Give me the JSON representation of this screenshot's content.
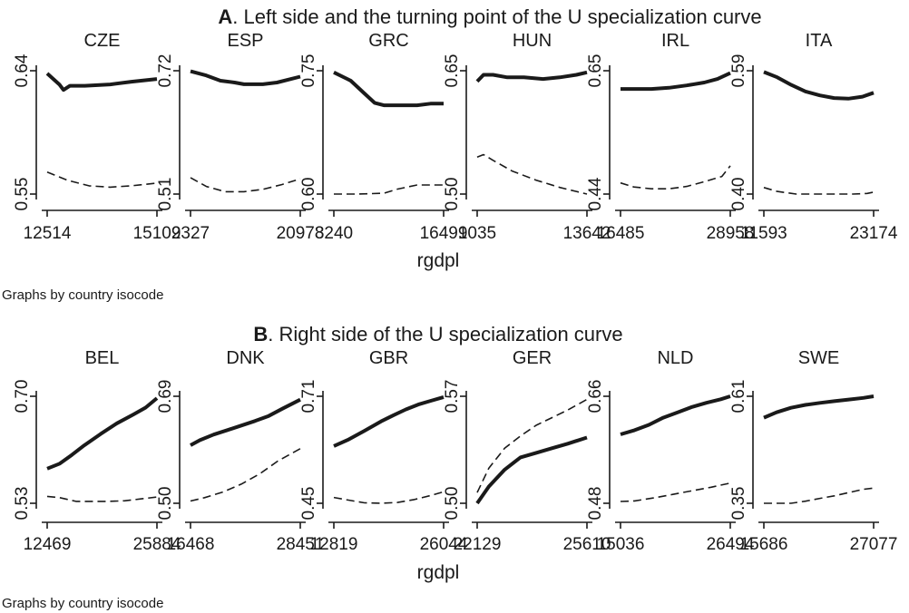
{
  "panels": [
    {
      "letter": "A",
      "title": ". Left side and the turning point of the U specialization curve",
      "xlabel": "rgdpl",
      "note": "Graphs by country isocode"
    },
    {
      "letter": "B",
      "title": ". Right side of the U specialization curve",
      "xlabel": "rgdpl",
      "note": "Graphs by country isocode"
    }
  ],
  "chart_data": [
    {
      "type": "line",
      "panel": "A",
      "subplots": [
        {
          "title": "CZE",
          "xlim": [
            12514,
            15102
          ],
          "ylim": [
            0.55,
            0.64
          ],
          "x_ticks": [
            "12514",
            "15102"
          ],
          "y_ticks": [
            "0.55",
            "0.64"
          ],
          "series": [
            {
              "style": "solid",
              "x": [
                12514,
                12800,
                12900,
                13050,
                13400,
                14000,
                14500,
                15102
              ],
              "y": [
                0.638,
                0.63,
                0.626,
                0.629,
                0.629,
                0.63,
                0.632,
                0.634
              ]
            },
            {
              "style": "dashed",
              "x": [
                12514,
                13000,
                13500,
                14000,
                14500,
                15102
              ],
              "y": [
                0.566,
                0.56,
                0.556,
                0.555,
                0.556,
                0.558
              ]
            }
          ]
        },
        {
          "title": "ESP",
          "xlim": [
            9327,
            20973
          ],
          "ylim": [
            0.51,
            0.72
          ],
          "x_ticks": [
            "9327",
            "20973"
          ],
          "y_ticks": [
            "0.51",
            "0.72"
          ],
          "series": [
            {
              "style": "solid",
              "x": [
                9327,
                11000,
                12500,
                14000,
                15000,
                17000,
                18500,
                20000,
                20973
              ],
              "y": [
                0.719,
                0.712,
                0.703,
                0.7,
                0.697,
                0.697,
                0.7,
                0.706,
                0.71
              ]
            },
            {
              "style": "dashed",
              "x": [
                9327,
                11000,
                13000,
                15000,
                17000,
                19000,
                20973
              ],
              "y": [
                0.538,
                0.523,
                0.514,
                0.514,
                0.518,
                0.526,
                0.536
              ]
            }
          ]
        },
        {
          "title": "GRC",
          "xlim": [
            8240,
            16491
          ],
          "ylim": [
            0.6,
            0.75
          ],
          "x_ticks": [
            "8240",
            "16491"
          ],
          "y_ticks": [
            "0.60",
            "0.75"
          ],
          "series": [
            {
              "style": "solid",
              "x": [
                8240,
                9500,
                10500,
                11300,
                12000,
                13000,
                14500,
                15500,
                16491
              ],
              "y": [
                0.748,
                0.738,
                0.723,
                0.711,
                0.708,
                0.708,
                0.708,
                0.71,
                0.71
              ]
            },
            {
              "style": "dashed",
              "x": [
                8240,
                10000,
                12000,
                13000,
                14500,
                16491
              ],
              "y": [
                0.6,
                0.6,
                0.601,
                0.606,
                0.611,
                0.611
              ]
            }
          ]
        },
        {
          "title": "HUN",
          "xlim": [
            9035,
            13642
          ],
          "ylim": [
            0.5,
            0.65
          ],
          "x_ticks": [
            "9035",
            "13642"
          ],
          "y_ticks": [
            "0.50",
            "0.65"
          ],
          "series": [
            {
              "style": "solid",
              "x": [
                9035,
                9300,
                9700,
                10300,
                11000,
                11800,
                12500,
                13200,
                13642
              ],
              "y": [
                0.637,
                0.645,
                0.645,
                0.642,
                0.642,
                0.64,
                0.642,
                0.645,
                0.648
              ]
            },
            {
              "style": "dashed",
              "x": [
                9035,
                9300,
                9700,
                10500,
                11500,
                12500,
                13642
              ],
              "y": [
                0.545,
                0.548,
                0.541,
                0.528,
                0.517,
                0.508,
                0.5
              ]
            }
          ]
        },
        {
          "title": "IRL",
          "xlim": [
            16485,
            28958
          ],
          "ylim": [
            0.44,
            0.65
          ],
          "x_ticks": [
            "16485",
            "28958"
          ],
          "y_ticks": [
            "0.44",
            "0.65"
          ],
          "series": [
            {
              "style": "solid",
              "x": [
                16485,
                18000,
                20000,
                22000,
                24000,
                26000,
                27500,
                28958
              ],
              "y": [
                0.619,
                0.619,
                0.619,
                0.621,
                0.625,
                0.63,
                0.636,
                0.646
              ]
            },
            {
              "style": "dashed",
              "x": [
                16485,
                18000,
                20000,
                22000,
                24000,
                26000,
                28000,
                28958
              ],
              "y": [
                0.459,
                0.452,
                0.449,
                0.449,
                0.453,
                0.461,
                0.47,
                0.488
              ]
            }
          ]
        },
        {
          "title": "ITA",
          "xlim": [
            11593,
            23174
          ],
          "ylim": [
            0.4,
            0.59
          ],
          "x_ticks": [
            "11593",
            "23174"
          ],
          "y_ticks": [
            "0.40",
            "0.59"
          ],
          "series": [
            {
              "style": "solid",
              "x": [
                11593,
                13000,
                14500,
                16000,
                17500,
                19000,
                20500,
                22000,
                23174
              ],
              "y": [
                0.588,
                0.58,
                0.568,
                0.558,
                0.552,
                0.548,
                0.547,
                0.55,
                0.556
              ]
            },
            {
              "style": "dashed",
              "x": [
                11593,
                13000,
                15000,
                17000,
                19000,
                21000,
                22500,
                23174
              ],
              "y": [
                0.41,
                0.404,
                0.4,
                0.4,
                0.4,
                0.4,
                0.401,
                0.403
              ]
            }
          ]
        }
      ]
    },
    {
      "type": "line",
      "panel": "B",
      "subplots": [
        {
          "title": "BEL",
          "xlim": [
            12469,
            25884
          ],
          "ylim": [
            0.53,
            0.7
          ],
          "x_ticks": [
            "12469",
            "25884"
          ],
          "y_ticks": [
            "0.53",
            "0.70"
          ],
          "series": [
            {
              "style": "solid",
              "x": [
                12469,
                14000,
                15500,
                17000,
                19000,
                21000,
                23000,
                24500,
                25884
              ],
              "y": [
                0.585,
                0.593,
                0.607,
                0.622,
                0.64,
                0.657,
                0.671,
                0.682,
                0.697
              ]
            },
            {
              "style": "dashed",
              "x": [
                12469,
                14000,
                16000,
                18000,
                20000,
                22000,
                24000,
                25884
              ],
              "y": [
                0.541,
                0.539,
                0.533,
                0.533,
                0.533,
                0.534,
                0.537,
                0.54
              ]
            }
          ]
        },
        {
          "title": "DNK",
          "xlim": [
            16468,
            28451
          ],
          "ylim": [
            0.5,
            0.69
          ],
          "x_ticks": [
            "16468",
            "28451"
          ],
          "y_ticks": [
            "0.50",
            "0.69"
          ],
          "series": [
            {
              "style": "solid",
              "x": [
                16468,
                17500,
                19000,
                20500,
                22000,
                23500,
                25000,
                26500,
                28451
              ],
              "y": [
                0.603,
                0.612,
                0.622,
                0.63,
                0.638,
                0.646,
                0.655,
                0.668,
                0.684
              ]
            },
            {
              "style": "dashed",
              "x": [
                16468,
                18000,
                20000,
                22000,
                24000,
                26000,
                28451
              ],
              "y": [
                0.504,
                0.51,
                0.52,
                0.534,
                0.552,
                0.575,
                0.597
              ]
            }
          ]
        },
        {
          "title": "GBR",
          "xlim": [
            12819,
            26044
          ],
          "ylim": [
            0.45,
            0.71
          ],
          "x_ticks": [
            "12819",
            "26044"
          ],
          "y_ticks": [
            "0.45",
            "0.71"
          ],
          "series": [
            {
              "style": "solid",
              "x": [
                12819,
                14500,
                16500,
                18500,
                20000,
                21500,
                23000,
                24500,
                26044
              ],
              "y": [
                0.589,
                0.604,
                0.626,
                0.649,
                0.664,
                0.678,
                0.69,
                0.699,
                0.708
              ]
            },
            {
              "style": "dashed",
              "x": [
                12819,
                14500,
                16500,
                18500,
                20500,
                22500,
                24500,
                26044
              ],
              "y": [
                0.464,
                0.458,
                0.451,
                0.45,
                0.452,
                0.459,
                0.469,
                0.478
              ]
            }
          ]
        },
        {
          "title": "GER",
          "xlim": [
            22129,
            25610
          ],
          "ylim": [
            0.5,
            0.57
          ],
          "x_ticks": [
            "22129",
            "25610"
          ],
          "y_ticks": [
            "0.50",
            "0.57"
          ],
          "series": [
            {
              "style": "solid",
              "x": [
                22129,
                22500,
                23000,
                23500,
                24000,
                24500,
                25000,
                25610
              ],
              "y": [
                0.5,
                0.511,
                0.522,
                0.53,
                0.533,
                0.536,
                0.539,
                0.543
              ]
            },
            {
              "style": "dashed",
              "x": [
                22129,
                22500,
                23000,
                23500,
                24000,
                24500,
                25000,
                25610
              ],
              "y": [
                0.507,
                0.523,
                0.536,
                0.544,
                0.551,
                0.556,
                0.561,
                0.568
              ]
            }
          ]
        },
        {
          "title": "NLD",
          "xlim": [
            15036,
            26494
          ],
          "ylim": [
            0.48,
            0.66
          ],
          "x_ticks": [
            "15036",
            "26494"
          ],
          "y_ticks": [
            "0.48",
            "0.66"
          ],
          "series": [
            {
              "style": "solid",
              "x": [
                15036,
                16500,
                18000,
                19500,
                21000,
                22500,
                24000,
                25500,
                26494
              ],
              "y": [
                0.596,
                0.603,
                0.612,
                0.624,
                0.633,
                0.642,
                0.649,
                0.655,
                0.66
              ]
            },
            {
              "style": "dashed",
              "x": [
                15036,
                16500,
                18500,
                20500,
                22500,
                24500,
                26494
              ],
              "y": [
                0.483,
                0.484,
                0.489,
                0.495,
                0.501,
                0.507,
                0.514
              ]
            }
          ]
        },
        {
          "title": "SWE",
          "xlim": [
            15686,
            27077
          ],
          "ylim": [
            0.35,
            0.61
          ],
          "x_ticks": [
            "15686",
            "27077"
          ],
          "y_ticks": [
            "0.35",
            "0.61"
          ],
          "series": [
            {
              "style": "solid",
              "x": [
                15686,
                17000,
                18500,
                20000,
                21500,
                23000,
                24500,
                26000,
                27077
              ],
              "y": [
                0.558,
                0.571,
                0.582,
                0.589,
                0.594,
                0.598,
                0.602,
                0.606,
                0.61
              ]
            },
            {
              "style": "dashed",
              "x": [
                15686,
                17000,
                18500,
                20000,
                21500,
                23000,
                24500,
                26000,
                27077
              ],
              "y": [
                0.35,
                0.35,
                0.35,
                0.355,
                0.362,
                0.368,
                0.376,
                0.384,
                0.387
              ]
            }
          ]
        }
      ]
    }
  ]
}
